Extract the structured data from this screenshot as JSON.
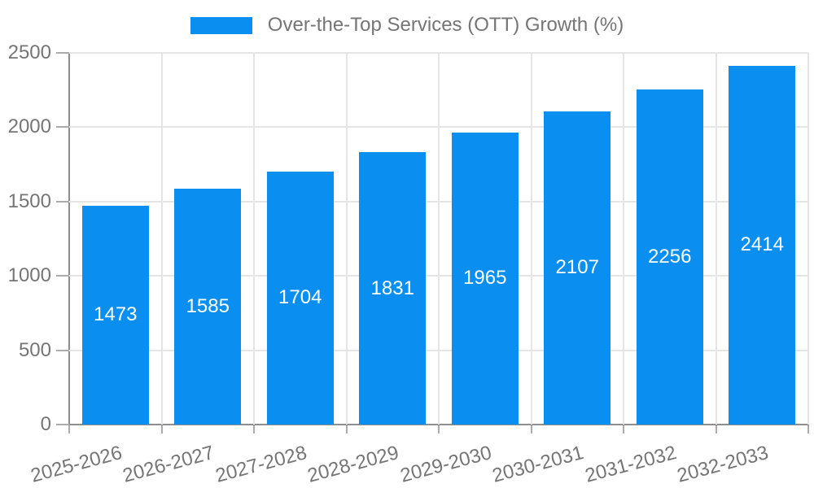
{
  "legend": {
    "label": "Over-the-Top Services (OTT) Growth (%)"
  },
  "chart_data": {
    "type": "bar",
    "title": "",
    "xlabel": "",
    "ylabel": "",
    "categories": [
      "2025-2026",
      "2026-2027",
      "2027-2028",
      "2028-2029",
      "2029-2030",
      "2030-2031",
      "2031-2032",
      "2032-2033"
    ],
    "series": [
      {
        "name": "Over-the-Top Services (OTT) Growth (%)",
        "values": [
          1473,
          1585,
          1704,
          1831,
          1965,
          2107,
          2256,
          2414
        ]
      }
    ],
    "value_labels_shown": true,
    "ylim": [
      0,
      2500
    ],
    "yticks": [
      0,
      500,
      1000,
      1500,
      2000,
      2500
    ],
    "grid": "on",
    "legend_position": "top-center",
    "bar_color": "#0a8ef0",
    "value_label_color": "#ffffff",
    "tick_label_color": "#757575",
    "gridline_color": "#e5e5e5",
    "axis_line_color": "#8f8f8f"
  }
}
